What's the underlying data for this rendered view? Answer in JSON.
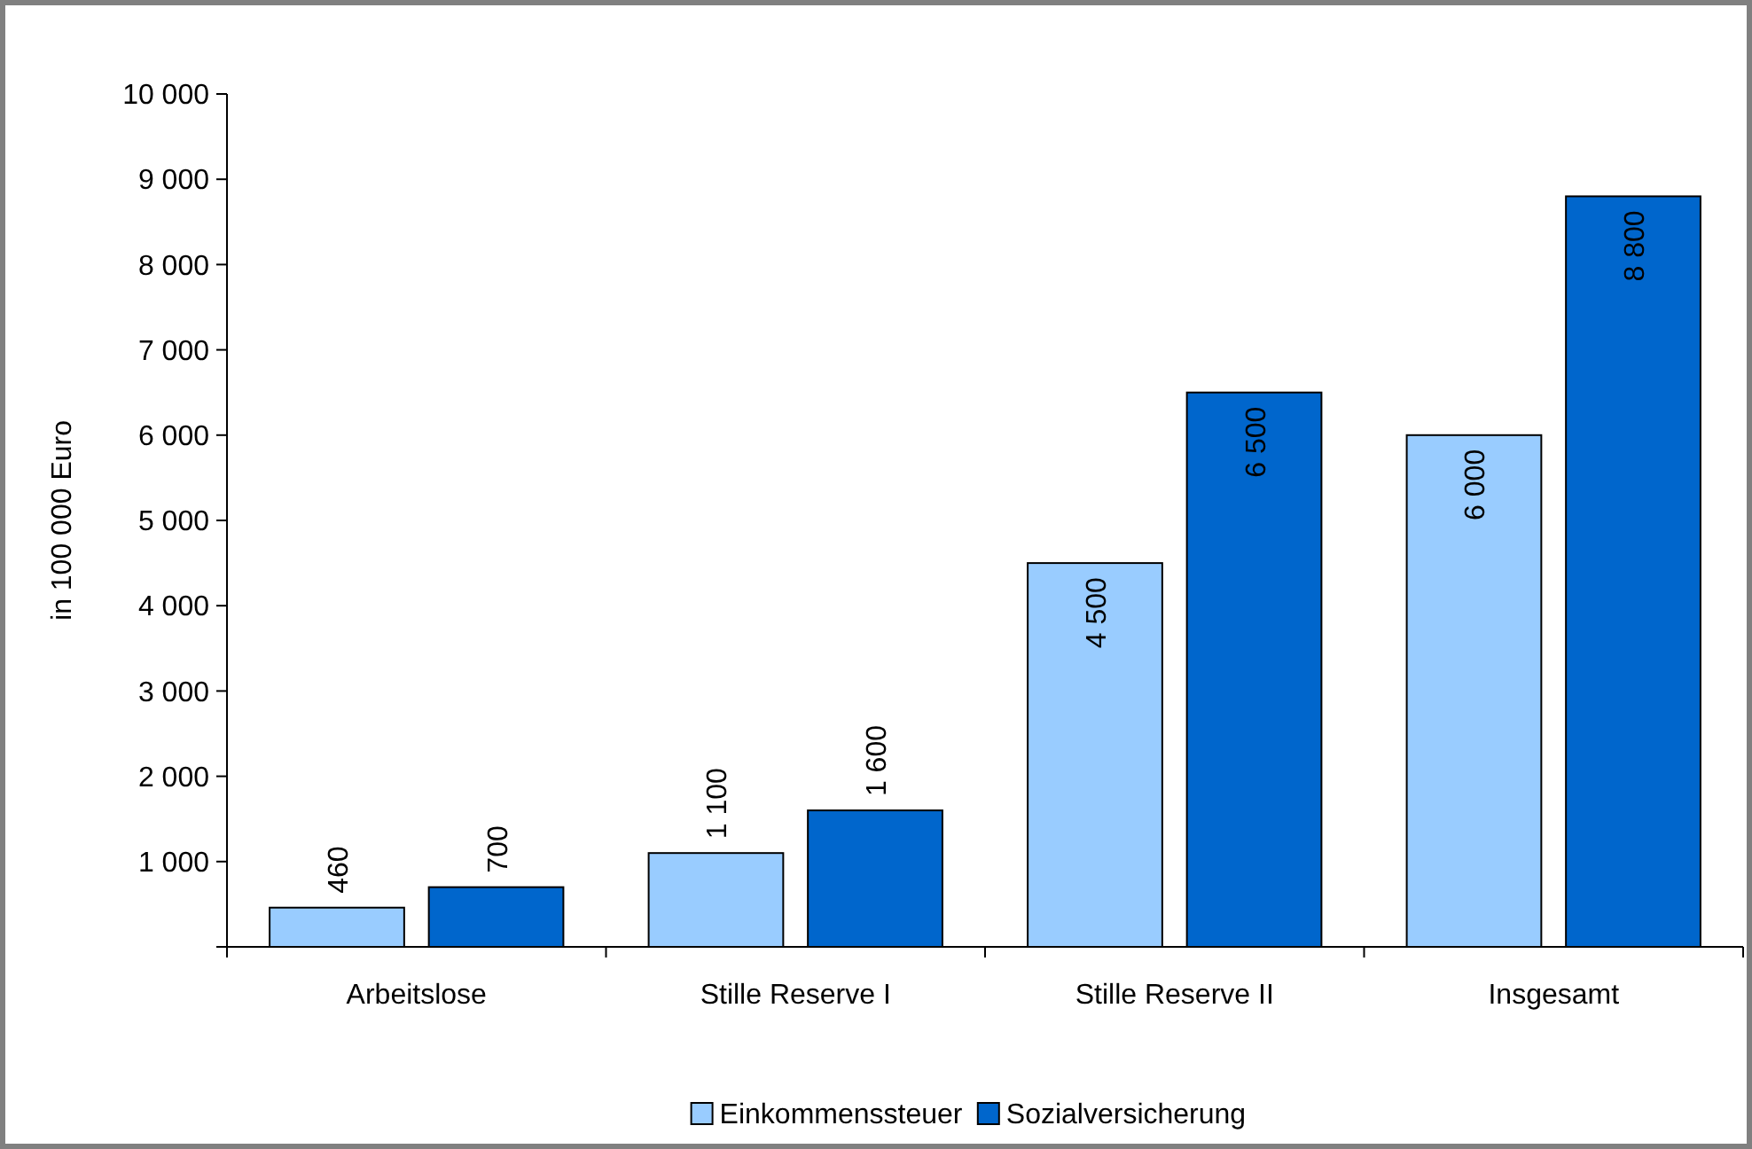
{
  "chart_data": {
    "type": "bar",
    "ylabel": "in 100 000 Euro",
    "categories": [
      "Arbeitslose",
      "Stille Reserve I",
      "Stille Reserve II",
      "Insgesamt"
    ],
    "series": [
      {
        "name": "Einkommenssteuer",
        "color": "#99ccff",
        "values": [
          460,
          1100,
          4500,
          6000
        ],
        "value_labels": [
          "460",
          "1 100",
          "4 500",
          "6 000"
        ]
      },
      {
        "name": "Sozialversicherung",
        "color": "#0066cc",
        "values": [
          700,
          1600,
          6500,
          8800
        ],
        "value_labels": [
          "700",
          "1 600",
          "6 500",
          "8 800"
        ]
      }
    ],
    "ylim": [
      0,
      10000
    ],
    "yticks": [
      {
        "value": 0,
        "label": null
      },
      {
        "value": 1000,
        "label": "1 000"
      },
      {
        "value": 2000,
        "label": "2 000"
      },
      {
        "value": 3000,
        "label": "3 000"
      },
      {
        "value": 4000,
        "label": "4 000"
      },
      {
        "value": 5000,
        "label": "5 000"
      },
      {
        "value": 6000,
        "label": "6 000"
      },
      {
        "value": 7000,
        "label": "7 000"
      },
      {
        "value": 8000,
        "label": "8 000"
      },
      {
        "value": 9000,
        "label": "9 000"
      },
      {
        "value": 10000,
        "label": "10 000"
      }
    ],
    "grid": false,
    "legend": "bottom"
  }
}
